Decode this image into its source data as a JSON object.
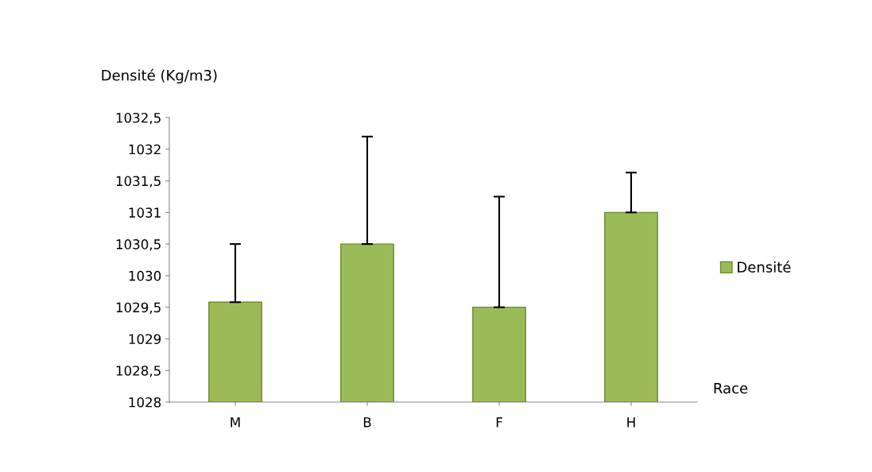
{
  "chart_data": {
    "type": "bar",
    "ylabel": "Densité (Kg/m3)",
    "xlabel": "Race",
    "categories": [
      "M",
      "B",
      "F",
      "H"
    ],
    "series": [
      {
        "name": "Densité",
        "color": "#9bbb59",
        "values": [
          1029.58,
          1030.5,
          1029.5,
          1031.0
        ],
        "errors": [
          [
            1029.58,
            1030.5
          ],
          [
            1030.5,
            1032.2
          ],
          [
            1029.5,
            1031.25
          ],
          [
            1031.0,
            1031.63
          ]
        ]
      }
    ],
    "ylim": [
      1028,
      1032.5
    ],
    "yticks": [
      {
        "value": 1028,
        "label": "1028"
      },
      {
        "value": 1028.5,
        "label": "1028,5"
      },
      {
        "value": 1029,
        "label": "1029"
      },
      {
        "value": 1029.5,
        "label": "1029,5"
      },
      {
        "value": 1030,
        "label": "1030"
      },
      {
        "value": 1030.5,
        "label": "1030,5"
      },
      {
        "value": 1031,
        "label": "1031"
      },
      {
        "value": 1031.5,
        "label": "1031,5"
      },
      {
        "value": 1032,
        "label": "1032"
      },
      {
        "value": 1032.5,
        "label": "1032,5"
      }
    ],
    "grid": false,
    "legend": "right"
  }
}
